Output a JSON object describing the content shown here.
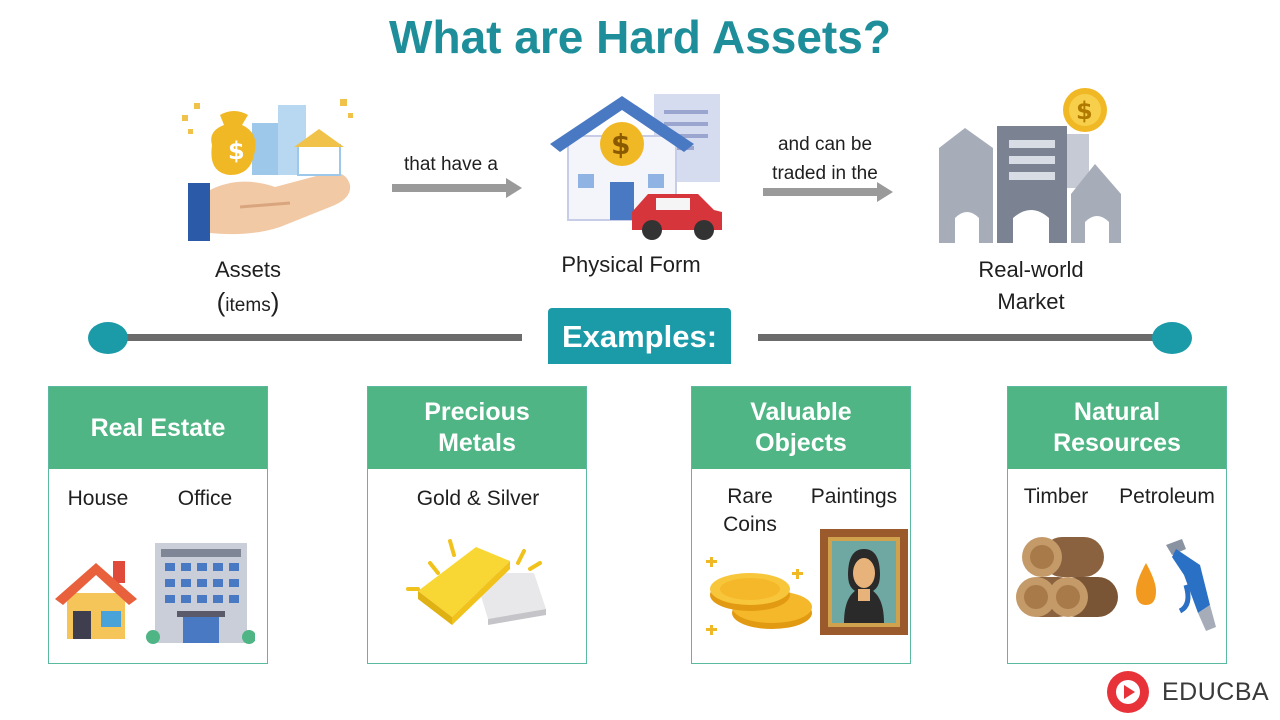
{
  "title": "What are Hard Assets?",
  "flow": {
    "step1": {
      "label_line1": "Assets",
      "label_paren_open": "(",
      "label_items": "items",
      "label_paren_close": ")",
      "icon": "money-bag-hand-icon"
    },
    "connector1": {
      "text": "that have a"
    },
    "step2": {
      "label": "Physical Form",
      "icon": "house-car-document-icon"
    },
    "connector2": {
      "line1": "and can be",
      "line2": "traded in the"
    },
    "step3": {
      "label_line1": "Real-world",
      "label_line2": "Market",
      "icon": "city-buildings-icon"
    }
  },
  "examples_label": "Examples:",
  "cards": [
    {
      "title_line1": "Real Estate",
      "title_line2": "",
      "items": [
        "House",
        "Office"
      ]
    },
    {
      "title_line1": "Precious",
      "title_line2": "Metals",
      "items": [
        "Gold & Silver"
      ]
    },
    {
      "title_line1": "Valuable",
      "title_line2": "Objects",
      "items": [
        "Rare",
        "Coins",
        "Paintings"
      ]
    },
    {
      "title_line1": "Natural",
      "title_line2": "Resources",
      "items": [
        "Timber",
        "Petroleum"
      ]
    }
  ],
  "brand": {
    "name": "EDUCBA"
  },
  "colors": {
    "title": "#1e8f9a",
    "teal": "#1b9aa8",
    "green": "#4fb584",
    "line": "#6b6b6b"
  }
}
